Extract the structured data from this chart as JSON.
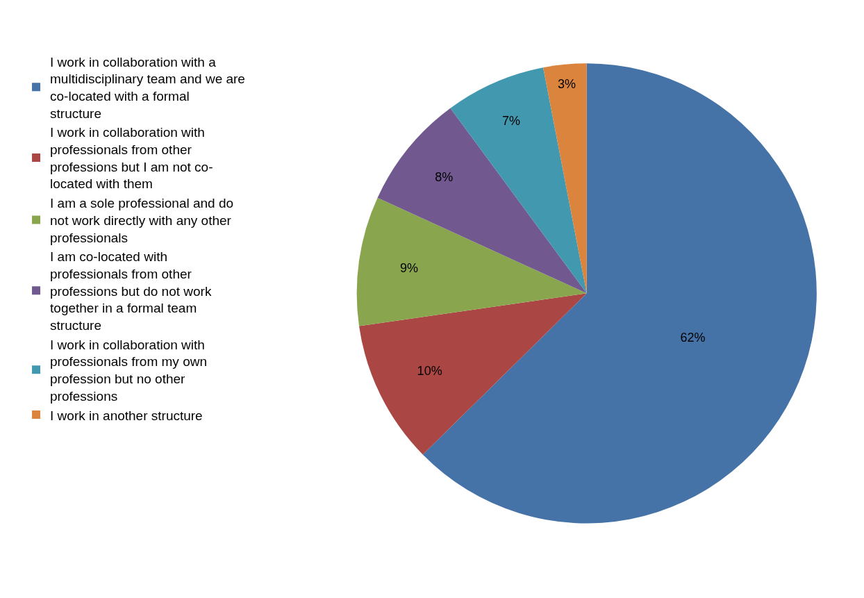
{
  "chart_data": {
    "type": "pie",
    "categories": [
      "I work in collaboration with a multidisciplinary team and we are co-located with a formal structure",
      "I work in collaboration with professionals from other professions but I am not co-located with them",
      "I am a sole professional and do not work directly with any other professionals",
      "I am co-located with professionals from other professions but do not work together in a formal team structure",
      "I work in collaboration with professionals from my own profession but no other professions",
      "I work in another structure"
    ],
    "values": [
      62,
      10,
      9,
      8,
      7,
      3
    ],
    "value_labels": [
      "62%",
      "10%",
      "9%",
      "8%",
      "7%",
      "3%"
    ],
    "colors": [
      "#4572a7",
      "#aa4643",
      "#89a54e",
      "#71588f",
      "#4198af",
      "#db843d"
    ],
    "legend": "left"
  }
}
